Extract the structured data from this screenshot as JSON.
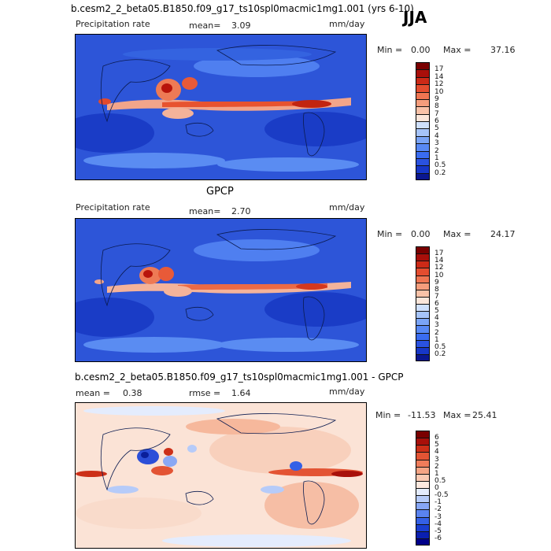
{
  "season": "JJA",
  "panels": [
    {
      "title": "b.cesm2_2_beta05.B1850.f09_g17_ts10spl0macmic1mg1.001 (yrs 6-10)",
      "left_label": "Precipitation rate",
      "stat1_label": "mean=",
      "stat1_value": "3.09",
      "stat2_label": "",
      "stat2_value": "",
      "units": "mm/day",
      "min_label": "Min =",
      "min_value": "0.00",
      "max_label": "Max =",
      "max_value": "37.16"
    },
    {
      "title": "GPCP",
      "left_label": "Precipitation rate",
      "stat1_label": "mean=",
      "stat1_value": "2.70",
      "stat2_label": "",
      "stat2_value": "",
      "units": "mm/day",
      "min_label": "Min =",
      "min_value": "0.00",
      "max_label": "Max =",
      "max_value": "24.17"
    },
    {
      "title": "b.cesm2_2_beta05.B1850.f09_g17_ts10spl0macmic1mg1.001 - GPCP",
      "left_label": "",
      "stat1_label": "mean =",
      "stat1_value": "0.38",
      "stat2_label": "rmse =",
      "stat2_value": "1.64",
      "units": "mm/day",
      "min_label": "Min =",
      "min_value": "-11.53",
      "max_label": "Max =",
      "max_value": "25.41"
    }
  ],
  "chart_data": [
    {
      "type": "heatmap",
      "title": "b.cesm2_2_beta05.B1850.f09_g17_ts10spl0macmic1mg1.001 (yrs 6-10)",
      "variable": "Precipitation rate",
      "units": "mm/day",
      "mean": 3.09,
      "min": 0.0,
      "max": 37.16,
      "colorbar_levels": [
        "0.2",
        "0.5",
        "1",
        "2",
        "3",
        "4",
        "5",
        "6",
        "7",
        "8",
        "9",
        "10",
        "12",
        "14",
        "17"
      ],
      "colorbar_colors": [
        "#0a1790",
        "#1737c8",
        "#2a52e0",
        "#3a6cf0",
        "#5889f5",
        "#7aa4f7",
        "#a6c4fa",
        "#cfe0fc",
        "#fbe6da",
        "#f9c2a8",
        "#f59d7c",
        "#ef7552",
        "#e44d2f",
        "#cc2a17",
        "#a90f0a",
        "#7a0000"
      ]
    },
    {
      "type": "heatmap",
      "title": "GPCP",
      "variable": "Precipitation rate",
      "units": "mm/day",
      "mean": 2.7,
      "min": 0.0,
      "max": 24.17,
      "colorbar_levels": [
        "0.2",
        "0.5",
        "1",
        "2",
        "3",
        "4",
        "5",
        "6",
        "7",
        "8",
        "9",
        "10",
        "12",
        "14",
        "17"
      ],
      "colorbar_colors": [
        "#0a1790",
        "#1737c8",
        "#2a52e0",
        "#3a6cf0",
        "#5889f5",
        "#7aa4f7",
        "#a6c4fa",
        "#cfe0fc",
        "#fbe6da",
        "#f9c2a8",
        "#f59d7c",
        "#ef7552",
        "#e44d2f",
        "#cc2a17",
        "#a90f0a",
        "#7a0000"
      ]
    },
    {
      "type": "heatmap",
      "title": "b.cesm2_2_beta05.B1850.f09_g17_ts10spl0macmic1mg1.001 - GPCP",
      "units": "mm/day",
      "mean": 0.38,
      "rmse": 1.64,
      "min": -11.53,
      "max": 25.41,
      "colorbar_levels": [
        "-6",
        "-5",
        "-4",
        "-3",
        "-2",
        "-1",
        "-0.5",
        "0",
        "0.5",
        "1",
        "2",
        "3",
        "4",
        "5",
        "6"
      ],
      "colorbar_colors": [
        "#00008a",
        "#0a1fb0",
        "#1a3ed0",
        "#3460e6",
        "#5a83ef",
        "#86a6f5",
        "#b6cbf9",
        "#e4ecfd",
        "#fde9df",
        "#fbcab3",
        "#f6a585",
        "#ef7c5a",
        "#e35434",
        "#cc2f18",
        "#a8100a",
        "#7a0000"
      ]
    }
  ]
}
